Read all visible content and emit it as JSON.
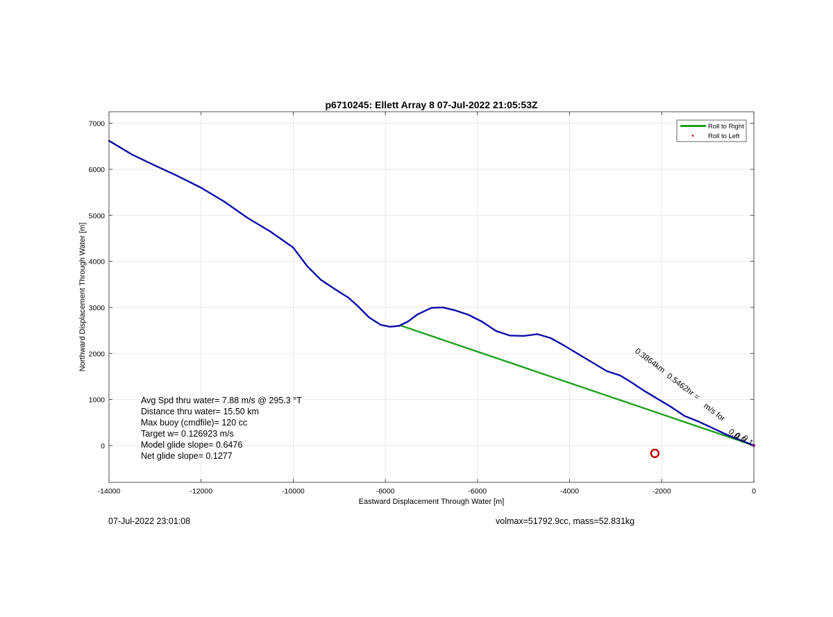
{
  "chart_data": {
    "type": "line",
    "title": "p6710245: Ellett Array 8 07-Jul-2022 21:05:53Z",
    "xlabel": "Eastward Displacement Through Water [m]",
    "ylabel": "Northward Displacement Through Water [m]",
    "xlim": [
      -14000,
      0
    ],
    "ylim": [
      -800,
      7250
    ],
    "xticks": [
      -14000,
      -12000,
      -10000,
      -8000,
      -6000,
      -4000,
      -2000,
      0
    ],
    "yticks": [
      0,
      1000,
      2000,
      3000,
      4000,
      5000,
      6000,
      7000
    ],
    "grid": true,
    "legend": {
      "placement": "top-right",
      "entries": [
        {
          "label": "Roll to Right",
          "color": "#1aa11a",
          "marker": "line"
        },
        {
          "label": "Roll to Left",
          "color": "#d00000",
          "marker": "dot"
        }
      ]
    },
    "series": [
      {
        "name": "track",
        "color": "#0a0aa8",
        "x": [
          -14000,
          -13500,
          -13000,
          -12500,
          -12000,
          -11500,
          -11000,
          -10500,
          -10000,
          -9700,
          -9400,
          -9100,
          -8800,
          -8600,
          -8350,
          -8100,
          -7900,
          -7700,
          -7500,
          -7300,
          -7000,
          -6750,
          -6500,
          -6200,
          -5900,
          -5600,
          -5300,
          -5000,
          -4700,
          -4400,
          -4100,
          -3800,
          -3500,
          -3200,
          -2900,
          -2700,
          -2400,
          -2100,
          -1800,
          -1500,
          -1200,
          -900,
          -600,
          -300,
          0
        ],
        "y": [
          6620,
          6320,
          6080,
          5850,
          5600,
          5300,
          4950,
          4650,
          4300,
          3900,
          3600,
          3400,
          3210,
          3030,
          2780,
          2620,
          2580,
          2600,
          2700,
          2850,
          2990,
          3000,
          2940,
          2840,
          2690,
          2490,
          2390,
          2380,
          2420,
          2330,
          2160,
          1980,
          1800,
          1620,
          1520,
          1400,
          1200,
          1020,
          840,
          640,
          520,
          380,
          240,
          120,
          0
        ]
      },
      {
        "name": "net",
        "color": "#1aa11a",
        "x": [
          -7650,
          0
        ],
        "y": [
          2600,
          0
        ]
      }
    ],
    "annotations": [
      {
        "text": "0.3864km",
        "x": -2590,
        "y": 2030,
        "rotation": 37
      },
      {
        "text": "0.5462hr =",
        "x": -1900,
        "y": 1490,
        "rotation": 37
      },
      {
        "text": "m/s for",
        "x": -1100,
        "y": 840,
        "rotation": 37
      },
      {
        "text": "0.0",
        "x": -560,
        "y": 280,
        "rotation": 37
      },
      {
        "text": "0.0",
        "x": -420,
        "y": 200,
        "rotation": 37
      },
      {
        "text": "0.1",
        "x": -260,
        "y": 140,
        "rotation": 37
      }
    ],
    "marker": {
      "x": -2150,
      "y": -170,
      "color": "#c00000"
    },
    "stats": [
      "Avg Spd thru water=  7.88 m/s @ 295.3 °T",
      "Distance thru water= 15.50 km",
      "Max buoy (cmdfile)= 120 cc",
      "Target w= 0.126923 m/s",
      "Model glide slope= 0.6476",
      "Net glide slope= 0.1277"
    ]
  },
  "footer": {
    "timestamp": "07-Jul-2022 23:01:08",
    "vehicle_info": "volmax=51792.9cc, mass=52.831kg"
  }
}
